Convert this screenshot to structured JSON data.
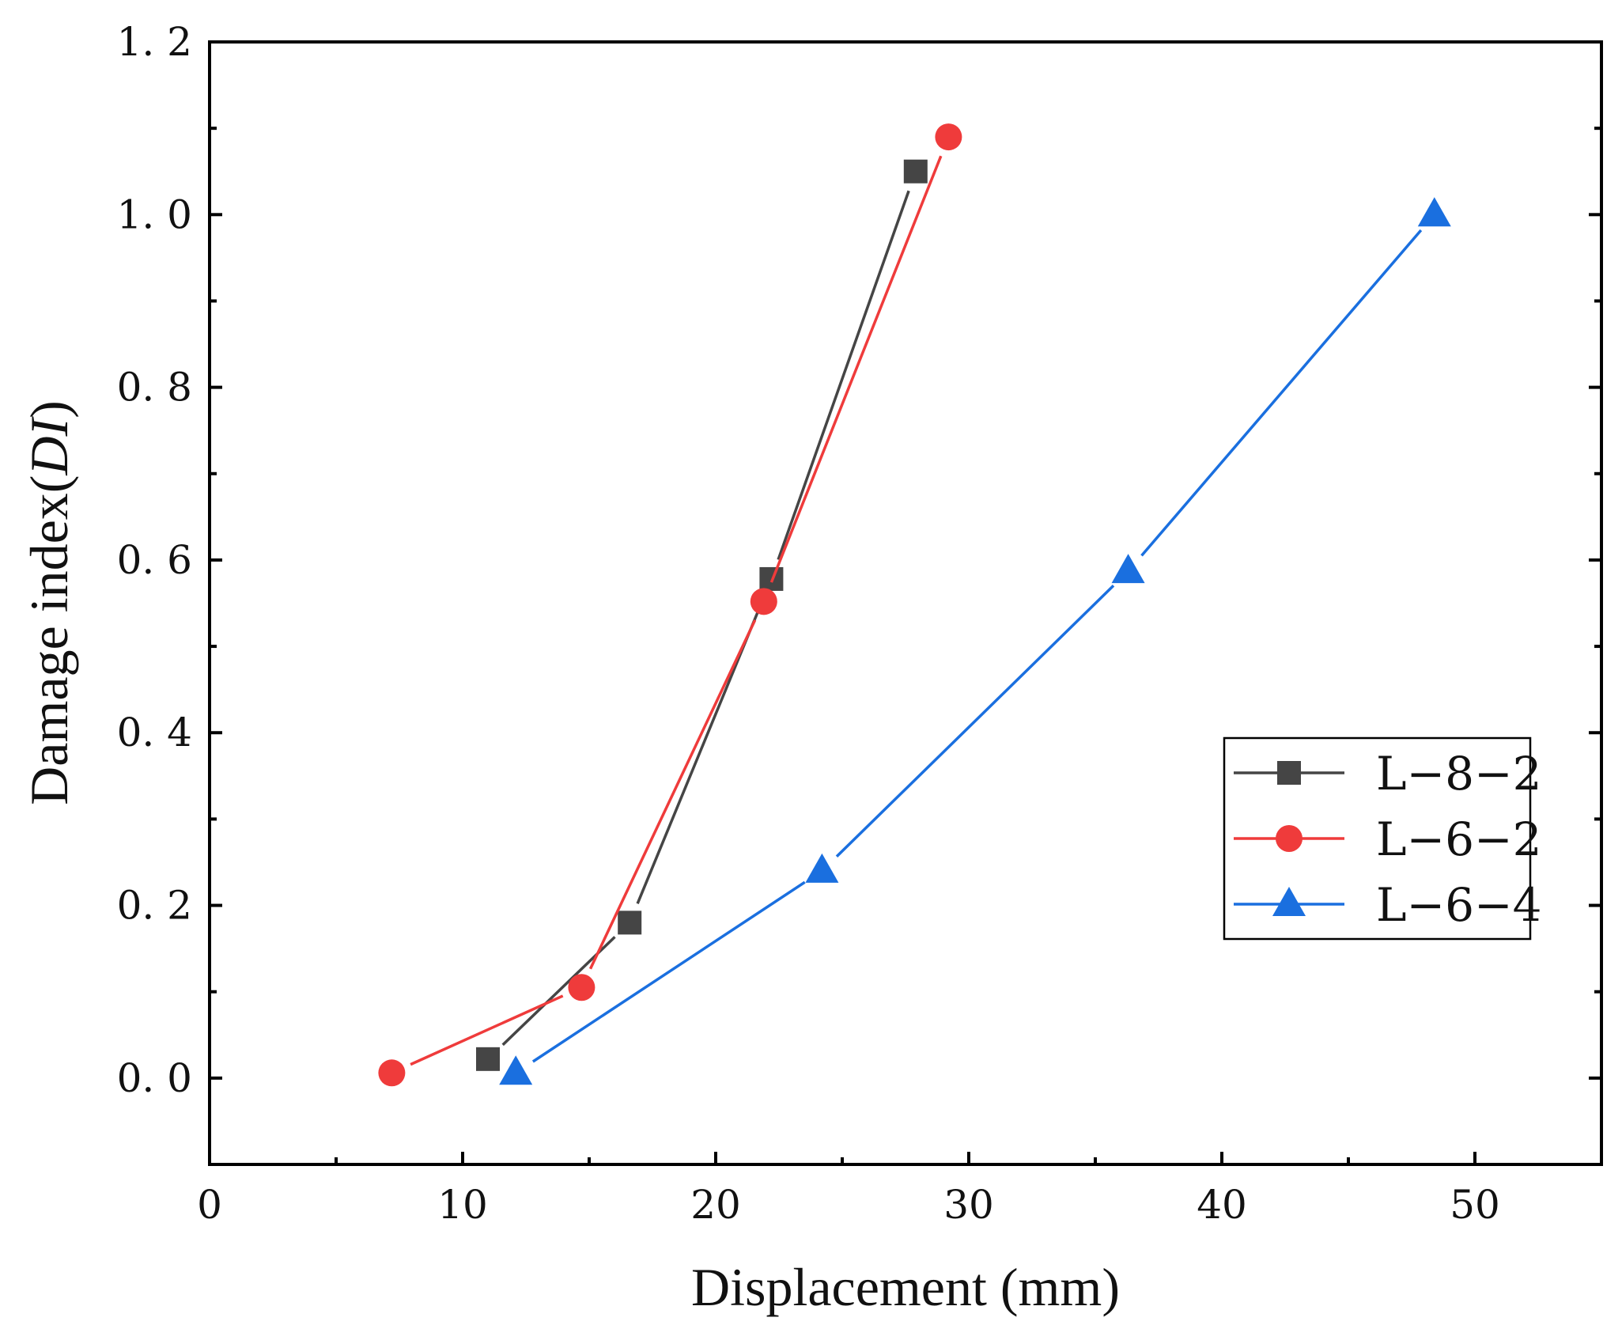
{
  "chart_data": {
    "type": "line",
    "xlabel": "Displacement (mm)",
    "ylabel_prefix": "Damage index(",
    "ylabel_italic": "DI",
    "ylabel_suffix": ")",
    "xlim": [
      0,
      55
    ],
    "ylim": [
      -0.1,
      1.2
    ],
    "xticks": [
      0,
      10,
      20,
      30,
      40,
      50
    ],
    "xtick_labels": [
      "0",
      "10",
      "20",
      "30",
      "40",
      "50"
    ],
    "yticks": [
      0.0,
      0.2,
      0.4,
      0.6,
      0.8,
      1.0,
      1.2
    ],
    "ytick_labels": [
      "0. 0",
      "0. 2",
      "0. 4",
      "0. 6",
      "0. 8",
      "1. 0",
      "1. 2"
    ],
    "legend_position": "lower-right",
    "series": [
      {
        "name": "L-8-2",
        "label": "L−8−2",
        "marker": "square",
        "color": "#454545",
        "x": [
          11.0,
          16.6,
          22.2,
          27.9
        ],
        "y": [
          0.022,
          0.18,
          0.578,
          1.05
        ]
      },
      {
        "name": "L-6-2",
        "label": "L−6−2",
        "marker": "circle",
        "color": "#ef3b3b",
        "x": [
          7.2,
          14.7,
          21.9,
          29.2
        ],
        "y": [
          0.006,
          0.105,
          0.552,
          1.09
        ]
      },
      {
        "name": "L-6-4",
        "label": "L−6−4",
        "marker": "triangle",
        "color": "#1a6fdf",
        "x": [
          12.1,
          24.2,
          36.3,
          48.4
        ],
        "y": [
          0.006,
          0.24,
          0.587,
          1.0
        ]
      }
    ]
  }
}
